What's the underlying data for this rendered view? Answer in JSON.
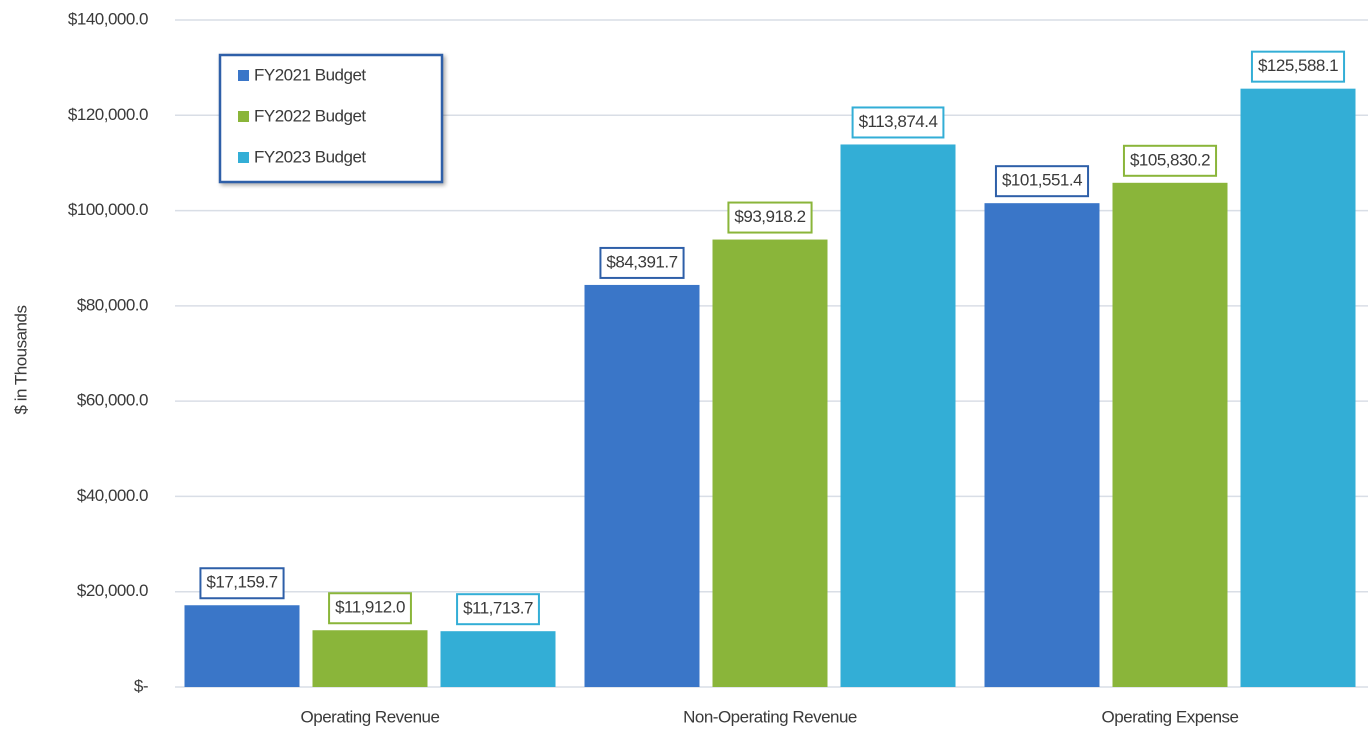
{
  "chart_data": {
    "type": "bar",
    "y_axis_label": "$ in Thousands",
    "categories": [
      "Operating Revenue",
      "Non-Operating Revenue",
      "Operating Expense"
    ],
    "series": [
      {
        "name": "FY2021 Budget",
        "color": "#3a76c8",
        "label_border": "#2e5fa8",
        "values": [
          17159.7,
          84391.7,
          101551.4
        ],
        "value_labels": [
          "$17,159.7",
          "$84,391.7",
          "$101,551.4"
        ]
      },
      {
        "name": "FY2022 Budget",
        "color": "#8ab53a",
        "label_border": "#8ab53a",
        "values": [
          11912.0,
          93918.2,
          105830.2
        ],
        "value_labels": [
          "$11,912.0",
          "$93,918.2",
          "$105,830.2"
        ]
      },
      {
        "name": "FY2023 Budget",
        "color": "#33aed6",
        "label_border": "#33aed6",
        "values": [
          11713.7,
          113874.4,
          125588.1
        ],
        "value_labels": [
          "$11,713.7",
          "$113,874.4",
          "$125,588.1"
        ]
      }
    ],
    "ylim": [
      0,
      140000
    ],
    "yticks": [
      {
        "value": 0,
        "label": "$-"
      },
      {
        "value": 20000,
        "label": "$20,000.0"
      },
      {
        "value": 40000,
        "label": "$40,000.0"
      },
      {
        "value": 60000,
        "label": "$60,000.0"
      },
      {
        "value": 80000,
        "label": "$80,000.0"
      },
      {
        "value": 100000,
        "label": "$100,000.0"
      },
      {
        "value": 120000,
        "label": "$120,000.0"
      },
      {
        "value": 140000,
        "label": "$140,000.0"
      }
    ],
    "grid": true,
    "legend": "top-left"
  }
}
